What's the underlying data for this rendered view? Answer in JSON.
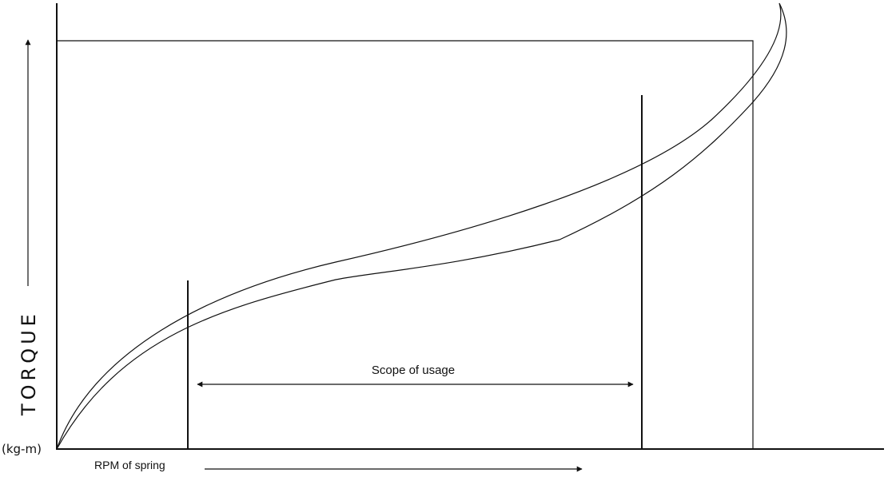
{
  "diagram": {
    "y_axis_label": "TORQUE",
    "y_axis_unit": "(kg-m)",
    "x_axis_label": "RPM of spring",
    "range_label": "Scope of usage"
  }
}
